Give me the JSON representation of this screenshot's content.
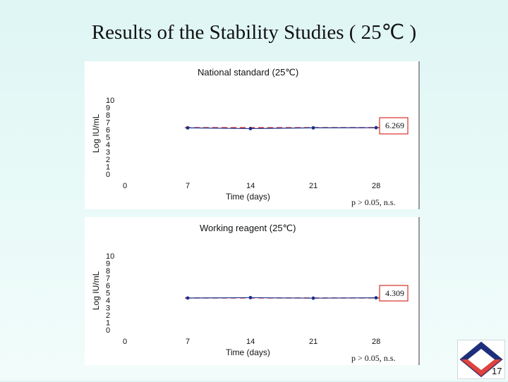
{
  "slide": {
    "title": "Results of the Stability Studies ( 25℃ )",
    "page_number": "17"
  },
  "colors": {
    "series": "#1a2f8a",
    "reference": "#d9302a",
    "marker": "#1a2f8a"
  },
  "chart_data": [
    {
      "type": "line",
      "title": "National standard (25℃)",
      "xlabel": "Time (days)",
      "ylabel": "Log IU/mL",
      "x_ticks": [
        "0",
        "7",
        "14",
        "21",
        "28"
      ],
      "y_ticks": [
        "10",
        "9",
        "8",
        "7",
        "6",
        "5",
        "4",
        "3",
        "2",
        "1",
        "0"
      ],
      "xlim": [
        0,
        28
      ],
      "ylim": [
        0,
        10
      ],
      "series": [
        {
          "x": [
            7,
            14,
            21,
            28
          ],
          "values": [
            6.25,
            6.15,
            6.25,
            6.27
          ]
        }
      ],
      "reference_line": {
        "value": 6.269,
        "label": "6.269"
      },
      "annotation": "p > 0.05,  n.s.",
      "grid": false
    },
    {
      "type": "line",
      "title": "Working reagent (25℃)",
      "xlabel": "Time (days)",
      "ylabel": "Log IU/mL",
      "x_ticks": [
        "0",
        "7",
        "14",
        "21",
        "28"
      ],
      "y_ticks": [
        "10",
        "9",
        "8",
        "7",
        "6",
        "5",
        "4",
        "3",
        "2",
        "1",
        "0"
      ],
      "xlim": [
        0,
        28
      ],
      "ylim": [
        0,
        10
      ],
      "series": [
        {
          "x": [
            7,
            14,
            21,
            28
          ],
          "values": [
            4.3,
            4.35,
            4.28,
            4.33
          ]
        }
      ],
      "reference_line": {
        "value": 4.309,
        "label": "4.309"
      },
      "annotation": "p > 0.05,  n.s.",
      "grid": false
    }
  ]
}
